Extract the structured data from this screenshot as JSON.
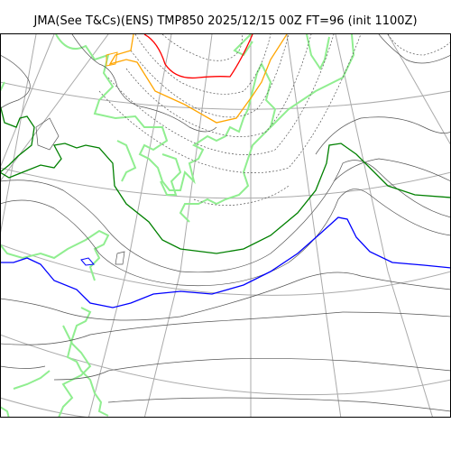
{
  "header": {
    "title": "JMA(See T&Cs)(ENS) TMP850 2025/12/15 00Z FT=96 (init 1100Z)"
  },
  "colors": {
    "coastline": "#90ee90",
    "graticule": "#aaaaaa",
    "isotherm_solid": "#555555",
    "isotherm_dashed": "#555555",
    "contour_green": "#008000",
    "contour_blue": "#0000ff",
    "contour_orange": "#ffa500",
    "contour_red": "#ff0000"
  }
}
